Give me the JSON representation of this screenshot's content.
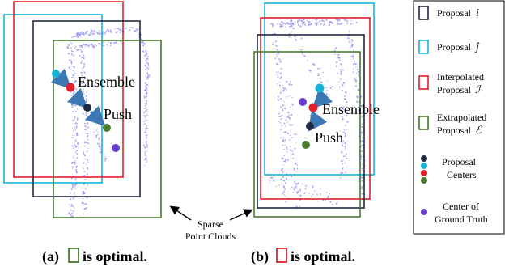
{
  "panel_a": {
    "ensemble_label": "Ensemble",
    "push_label": "Push",
    "caption_prefix": "(a)",
    "caption_suffix": "is optimal."
  },
  "panel_b": {
    "ensemble_label": "Ensemble",
    "push_label": "Push",
    "caption_prefix": "(b)",
    "caption_suffix": "is optimal."
  },
  "sparse_label": {
    "line1": "Sparse",
    "line2": "Point Clouds"
  },
  "legend": {
    "proposal_i_label": "Proposal",
    "proposal_i_symbol": "i",
    "proposal_j_label": "Proposal",
    "proposal_j_symbol": "ĵ",
    "interp_line1": "Interpolated",
    "interp_line2": "Proposal",
    "interp_symbol": "ℐ",
    "extrap_line1": "Extrapolated",
    "extrap_line2": "Proposal",
    "extrap_symbol": "ℰ",
    "centers_line1": "Proposal",
    "centers_line2": "Centers",
    "gt_line1": "Center of",
    "gt_line2": "Ground Truth"
  },
  "colors": {
    "proposal_i": "#1f2a44",
    "proposal_j": "#18b4d8",
    "interpolated": "#e0202a",
    "extrapolated": "#4a7a30",
    "ground_truth": "#6a3fd0",
    "points": "#8e8ef0",
    "arrow": "#3c78b4"
  }
}
